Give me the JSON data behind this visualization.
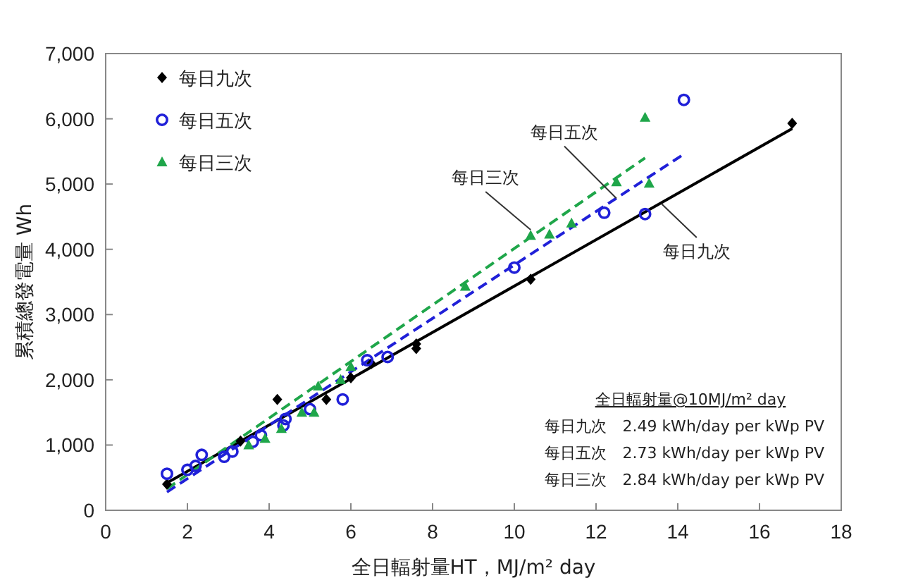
{
  "chart_data": {
    "type": "scatter",
    "xlabel": "全日輻射量HT，MJ/m² day",
    "ylabel": "累積總發電量 Wh",
    "xlim": [
      0,
      18
    ],
    "xticks": [
      0,
      2,
      4,
      6,
      8,
      10,
      12,
      14,
      16,
      18
    ],
    "ylim": [
      0,
      7000
    ],
    "yticks": [
      0,
      {
        "value": 1000,
        "label": "1,000"
      },
      {
        "value": 2000,
        "label": "2,000"
      },
      {
        "value": 3000,
        "label": "3,000"
      },
      {
        "value": 4000,
        "label": "4,000"
      },
      {
        "value": 5000,
        "label": "5,000"
      },
      {
        "value": 6000,
        "label": "6,000"
      },
      {
        "value": 7000,
        "label": "7,000"
      }
    ],
    "grid": false,
    "legend": "top left",
    "series": [
      {
        "name": "每日九次",
        "marker": "diamond",
        "color": "#000000",
        "x": [
          1.5,
          3.3,
          4.2,
          5.4,
          6.0,
          6.5,
          7.6,
          7.6,
          10.4,
          16.8
        ],
        "values": [
          400,
          1060,
          1700,
          1700,
          2030,
          2250,
          2480,
          2550,
          3540,
          5930
        ]
      },
      {
        "name": "每日五次",
        "marker": "circle",
        "color": "#2020d8",
        "x": [
          1.5,
          2.0,
          2.2,
          2.35,
          2.9,
          3.1,
          3.6,
          3.8,
          4.35,
          4.4,
          5.0,
          5.8,
          6.4,
          6.9,
          10.0,
          12.2,
          13.2,
          14.15
        ],
        "values": [
          560,
          620,
          680,
          850,
          820,
          900,
          1050,
          1150,
          1300,
          1400,
          1550,
          1700,
          2300,
          2350,
          3720,
          4560,
          4540,
          6290
        ]
      },
      {
        "name": "每日三次",
        "marker": "triangle",
        "color": "#1fa64a",
        "x": [
          3.5,
          3.9,
          4.3,
          4.8,
          5.1,
          5.2,
          5.75,
          6.0,
          8.8,
          10.4,
          10.86,
          11.4,
          12.5,
          13.2,
          13.3
        ],
        "values": [
          1000,
          1100,
          1250,
          1500,
          1500,
          1900,
          2000,
          2200,
          3430,
          4210,
          4230,
          4400,
          5030,
          6020,
          5010
        ]
      },
      {
        "type": "line",
        "line_style": "solid",
        "color": "#000000",
        "x": [
          1.5,
          16.8
        ],
        "values": [
          420,
          5850
        ]
      },
      {
        "type": "line",
        "line_style": "dashed",
        "color": "#2020d8",
        "x": [
          1.5,
          14.2
        ],
        "values": [
          280,
          5480
        ]
      },
      {
        "type": "line",
        "line_style": "dashed",
        "color": "#1fa64a",
        "x": [
          1.5,
          13.2
        ],
        "values": [
          330,
          5400
        ]
      }
    ],
    "annotations": [
      {
        "text": "每日五次",
        "x": 12.5,
        "y": 4780
      },
      {
        "text": "每日三次",
        "x": 10.4,
        "y": 4300
      },
      {
        "text": "每日九次",
        "x": 13.6,
        "y": 4700
      },
      "全日輻射量@10MJ/m² day",
      "每日九次　2.49 kWh/day per kWp PV",
      "每日五次　2.73 kWh/day per kWp PV",
      "每日三次　2.84 kWh/day per kWp PV"
    ]
  }
}
